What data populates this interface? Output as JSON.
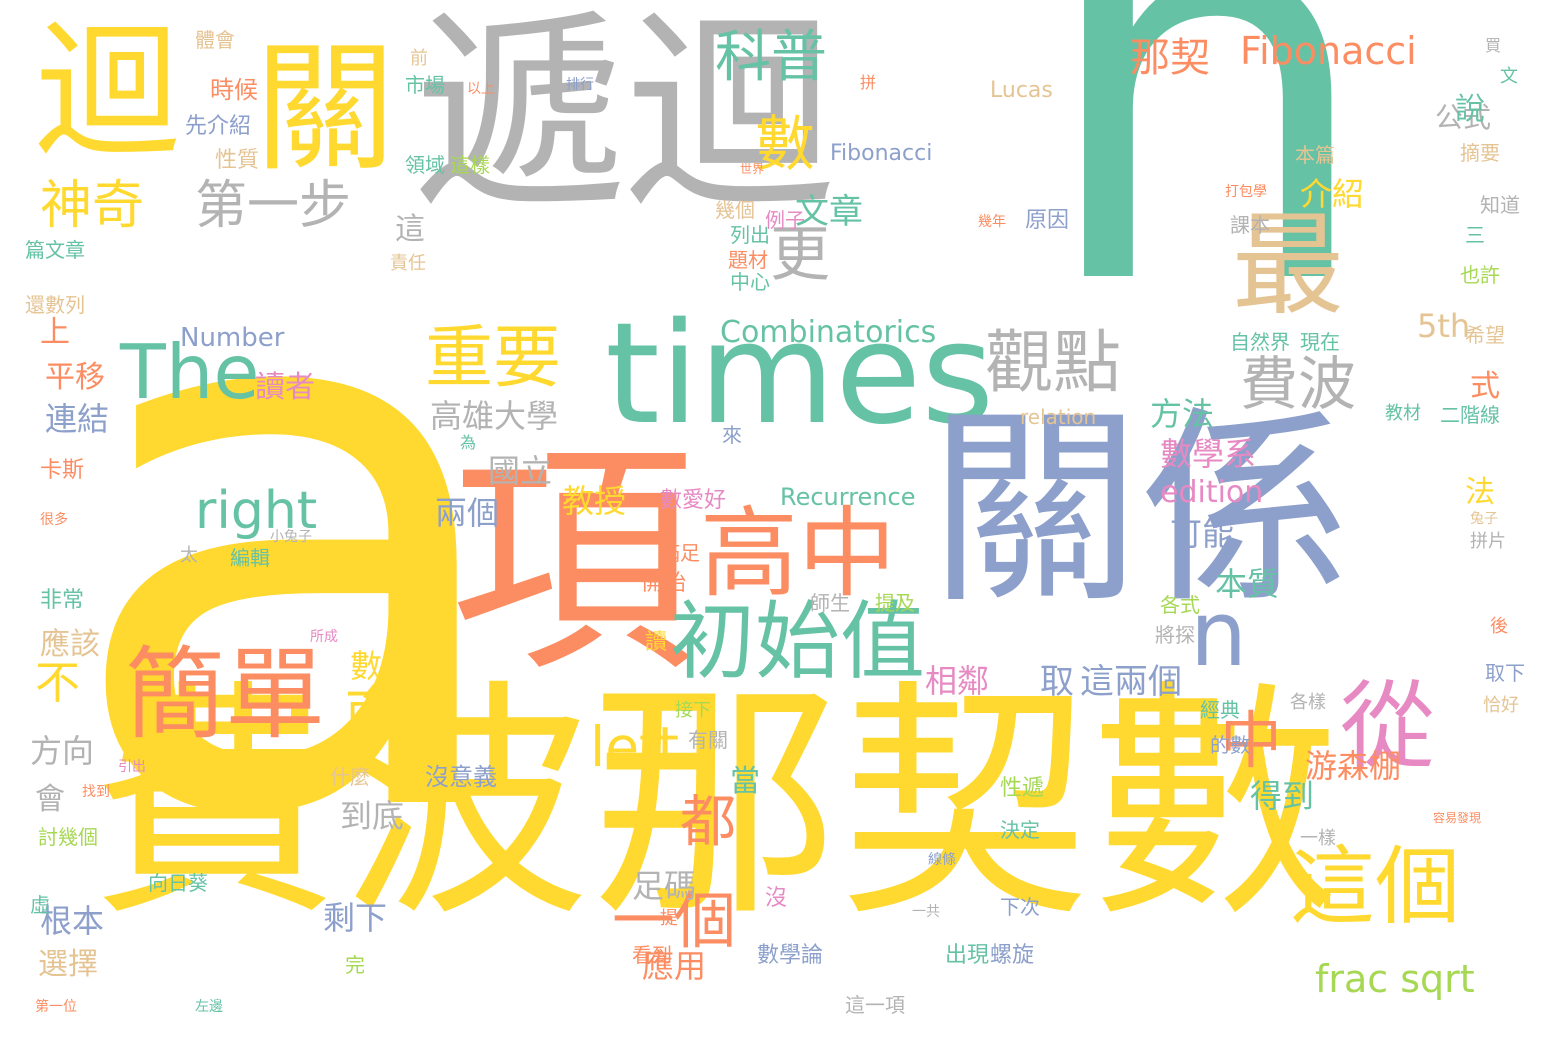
{
  "palette": {
    "yellow": "#FFD92F",
    "gray": "#B3B3B3",
    "teal": "#66C2A5",
    "orange": "#FC8D62",
    "blue": "#8DA0CB",
    "pink": "#E78AC3",
    "green": "#A6D854",
    "tan": "#E5C494"
  },
  "words": [
    {
      "text": "a",
      "color": "yellow",
      "vertical": false
    },
    {
      "text": "n",
      "color": "teal",
      "vertical": false
    },
    {
      "text": "遞迴",
      "color": "gray",
      "vertical": false
    },
    {
      "text": "費波那契數",
      "color": "yellow",
      "vertical": false
    },
    {
      "text": "times",
      "color": "teal",
      "vertical": false
    },
    {
      "text": "項",
      "color": "orange",
      "vertical": false
    },
    {
      "text": "關係",
      "color": "blue",
      "vertical": false
    },
    {
      "text": "迴",
      "color": "yellow",
      "vertical": false
    },
    {
      "text": "關",
      "color": "yellow",
      "vertical": false
    },
    {
      "text": "最",
      "color": "tan",
      "vertical": false
    },
    {
      "text": "高中",
      "color": "orange",
      "vertical": false
    },
    {
      "text": "初始值",
      "color": "teal",
      "vertical": false
    },
    {
      "text": "簡單",
      "color": "orange",
      "vertical": false
    },
    {
      "text": "從",
      "color": "pink",
      "vertical": false
    },
    {
      "text": "n",
      "color": "blue",
      "vertical": false
    },
    {
      "text": "這個",
      "color": "yellow",
      "vertical": false
    },
    {
      "text": "觀點",
      "color": "gray",
      "vertical": false
    },
    {
      "text": "重要",
      "color": "yellow",
      "vertical": false
    },
    {
      "text": "The",
      "color": "teal",
      "vertical": false
    },
    {
      "text": "費波",
      "color": "gray",
      "vertical": false
    },
    {
      "text": "神奇",
      "color": "yellow",
      "vertical": false
    },
    {
      "text": "第一步",
      "color": "gray",
      "vertical": false
    },
    {
      "text": "更",
      "color": "gray",
      "vertical": false
    },
    {
      "text": "數",
      "color": "yellow",
      "vertical": false
    },
    {
      "text": "科普",
      "color": "teal",
      "vertical": false
    },
    {
      "text": "那契",
      "color": "orange",
      "vertical": false
    },
    {
      "text": "Fibonacci",
      "color": "orange",
      "vertical": false
    },
    {
      "text": "right",
      "color": "teal",
      "vertical": false
    },
    {
      "text": "兩項",
      "color": "yellow",
      "vertical": false
    },
    {
      "text": "left",
      "color": "yellow",
      "vertical": false
    },
    {
      "text": "都",
      "color": "orange",
      "vertical": false
    },
    {
      "text": "一個",
      "color": "orange",
      "vertical": false
    },
    {
      "text": "不",
      "color": "yellow",
      "vertical": false
    },
    {
      "text": "中",
      "color": "orange",
      "vertical": false
    },
    {
      "text": "Combinatorics",
      "color": "teal",
      "vertical": false
    },
    {
      "text": "高雄大學",
      "color": "gray",
      "vertical": false
    },
    {
      "text": "frac sqrt",
      "color": "green",
      "vertical": false
    },
    {
      "text": "edition",
      "color": "pink",
      "vertical": false
    },
    {
      "text": "5th",
      "color": "tan",
      "vertical": false
    },
    {
      "text": "文章",
      "color": "teal",
      "vertical": false
    },
    {
      "text": "介紹",
      "color": "yellow",
      "vertical": false
    },
    {
      "text": "公式",
      "color": "gray",
      "vertical": false
    },
    {
      "text": "方法",
      "color": "teal",
      "vertical": false
    },
    {
      "text": "數學系",
      "color": "pink",
      "vertical": false
    },
    {
      "text": "可能",
      "color": "blue",
      "vertical": false
    },
    {
      "text": "本質",
      "color": "teal",
      "vertical": false
    },
    {
      "text": "國立",
      "color": "gray",
      "vertical": false
    },
    {
      "text": "兩個",
      "color": "blue",
      "vertical": false
    },
    {
      "text": "教授",
      "color": "yellow",
      "vertical": false
    },
    {
      "text": "游森棚",
      "color": "orange",
      "vertical": false
    },
    {
      "text": "這兩個",
      "color": "blue",
      "vertical": false
    },
    {
      "text": "取",
      "color": "blue",
      "vertical": false
    },
    {
      "text": "相鄰",
      "color": "pink",
      "vertical": false
    },
    {
      "text": "數列",
      "color": "yellow",
      "vertical": false
    },
    {
      "text": "到底",
      "color": "gray",
      "vertical": false
    },
    {
      "text": "剩下",
      "color": "blue",
      "vertical": false
    },
    {
      "text": "足碼",
      "color": "gray",
      "vertical": false
    },
    {
      "text": "應用",
      "color": "orange",
      "vertical": false
    },
    {
      "text": "得到",
      "color": "teal",
      "vertical": false
    },
    {
      "text": "平移",
      "color": "orange",
      "vertical": false
    },
    {
      "text": "連結",
      "color": "blue",
      "vertical": false
    },
    {
      "text": "讀者",
      "color": "pink",
      "vertical": false
    },
    {
      "text": "Number",
      "color": "blue",
      "vertical": false
    },
    {
      "text": "應該",
      "color": "tan",
      "vertical": false
    },
    {
      "text": "方向",
      "color": "gray",
      "vertical": false
    },
    {
      "text": "會",
      "color": "gray",
      "vertical": false
    },
    {
      "text": "根本",
      "color": "blue",
      "vertical": false
    },
    {
      "text": "選擇",
      "color": "tan",
      "vertical": false
    },
    {
      "text": "上",
      "color": "orange",
      "vertical": false
    },
    {
      "text": "這",
      "color": "gray",
      "vertical": false
    },
    {
      "text": "Recurrence",
      "color": "teal",
      "vertical": false
    },
    {
      "text": "Lucas",
      "color": "tan",
      "vertical": false
    },
    {
      "text": "Fibonacci",
      "color": "blue",
      "vertical": false
    },
    {
      "text": "relation",
      "color": "tan",
      "vertical": false
    },
    {
      "text": "當",
      "color": "teal",
      "vertical": false
    },
    {
      "text": "法",
      "color": "yellow",
      "vertical": false
    },
    {
      "text": "式",
      "color": "orange",
      "vertical": false
    },
    {
      "text": "說",
      "color": "teal",
      "vertical": false
    },
    {
      "text": "體會",
      "color": "tan",
      "vertical": false
    },
    {
      "text": "時候",
      "color": "orange",
      "vertical": false
    },
    {
      "text": "先介紹",
      "color": "blue",
      "vertical": false
    },
    {
      "text": "性質",
      "color": "tan",
      "vertical": false
    },
    {
      "text": "篇文章",
      "color": "teal",
      "vertical": false
    },
    {
      "text": "還數列",
      "color": "tan",
      "vertical": false
    },
    {
      "text": "卡斯",
      "color": "orange",
      "vertical": false
    },
    {
      "text": "非常",
      "color": "teal",
      "vertical": false
    },
    {
      "text": "虛",
      "color": "teal",
      "vertical": false
    },
    {
      "text": "前",
      "color": "tan",
      "vertical": false
    },
    {
      "text": "市場",
      "color": "teal",
      "vertical": false
    },
    {
      "text": "領域",
      "color": "teal",
      "vertical": false
    },
    {
      "text": "這樣",
      "color": "green",
      "vertical": false
    },
    {
      "text": "責任",
      "color": "tan",
      "vertical": false
    },
    {
      "text": "幾個",
      "color": "tan",
      "vertical": false
    },
    {
      "text": "例子",
      "color": "pink",
      "vertical": false
    },
    {
      "text": "列出",
      "color": "teal",
      "vertical": false
    },
    {
      "text": "題材",
      "color": "orange",
      "vertical": false
    },
    {
      "text": "中心",
      "color": "teal",
      "vertical": false
    },
    {
      "text": "原因",
      "color": "blue",
      "vertical": false
    },
    {
      "text": "本篇",
      "color": "tan",
      "vertical": false
    },
    {
      "text": "課本",
      "color": "gray",
      "vertical": false
    },
    {
      "text": "摘要",
      "color": "tan",
      "vertical": false
    },
    {
      "text": "知道",
      "color": "gray",
      "vertical": false
    },
    {
      "text": "三",
      "color": "teal",
      "vertical": false
    },
    {
      "text": "也許",
      "color": "green",
      "vertical": false
    },
    {
      "text": "希望",
      "color": "tan",
      "vertical": false
    },
    {
      "text": "自然界",
      "color": "teal",
      "vertical": false
    },
    {
      "text": "現在",
      "color": "teal",
      "vertical": false
    },
    {
      "text": "教材",
      "color": "teal",
      "vertical": false
    },
    {
      "text": "二階線",
      "color": "teal",
      "vertical": false
    },
    {
      "text": "滿足",
      "color": "orange",
      "vertical": false
    },
    {
      "text": "開始",
      "color": "orange",
      "vertical": false
    },
    {
      "text": "數愛好",
      "color": "pink",
      "vertical": false
    },
    {
      "text": "提及",
      "color": "green",
      "vertical": false
    },
    {
      "text": "將探",
      "color": "gray",
      "vertical": false
    },
    {
      "text": "各式",
      "color": "green",
      "vertical": false
    },
    {
      "text": "經典",
      "color": "teal",
      "vertical": false
    },
    {
      "text": "的數",
      "color": "blue",
      "vertical": false
    },
    {
      "text": "一樣",
      "color": "gray",
      "vertical": false
    },
    {
      "text": "什麼",
      "color": "tan",
      "vertical": false
    },
    {
      "text": "沒意義",
      "color": "blue",
      "vertical": false
    },
    {
      "text": "性遞",
      "color": "green",
      "vertical": false
    },
    {
      "text": "決定",
      "color": "teal",
      "vertical": false
    },
    {
      "text": "下次",
      "color": "blue",
      "vertical": false
    },
    {
      "text": "出現",
      "color": "teal",
      "vertical": false
    },
    {
      "text": "螺旋",
      "color": "blue",
      "vertical": false
    },
    {
      "text": "這一項",
      "color": "gray",
      "vertical": false
    },
    {
      "text": "數學論",
      "color": "blue",
      "vertical": false
    },
    {
      "text": "看到",
      "color": "orange",
      "vertical": false
    },
    {
      "text": "完",
      "color": "green",
      "vertical": false
    },
    {
      "text": "向日葵",
      "color": "teal",
      "vertical": false
    },
    {
      "text": "討幾個",
      "color": "green",
      "vertical": false
    },
    {
      "text": "太",
      "color": "gray",
      "vertical": false
    },
    {
      "text": "編輯",
      "color": "teal",
      "vertical": false
    },
    {
      "text": "師生",
      "color": "gray",
      "vertical": false
    },
    {
      "text": "讀",
      "color": "yellow",
      "vertical": false
    },
    {
      "text": "接下",
      "color": "green",
      "vertical": false
    },
    {
      "text": "有關",
      "color": "gray",
      "vertical": false
    },
    {
      "text": "取下",
      "color": "blue",
      "vertical": false
    },
    {
      "text": "恰好",
      "color": "tan",
      "vertical": false
    },
    {
      "text": "後",
      "color": "orange",
      "vertical": false
    },
    {
      "text": "各樣",
      "color": "gray",
      "vertical": false
    },
    {
      "text": "提",
      "color": "orange",
      "vertical": false
    },
    {
      "text": "沒",
      "color": "pink",
      "vertical": false
    },
    {
      "text": "一共",
      "color": "gray",
      "vertical": false
    },
    {
      "text": "文",
      "color": "teal",
      "vertical": false
    },
    {
      "text": "買",
      "color": "gray",
      "vertical": false
    },
    {
      "text": "拼",
      "color": "orange",
      "vertical": false
    },
    {
      "text": "以上",
      "color": "orange",
      "vertical": false
    },
    {
      "text": "排行",
      "color": "blue",
      "vertical": false
    },
    {
      "text": "世界",
      "color": "orange",
      "vertical": false
    },
    {
      "text": "打包學",
      "color": "orange",
      "vertical": false
    },
    {
      "text": "幾年",
      "color": "orange",
      "vertical": false
    },
    {
      "text": "很多",
      "color": "orange",
      "vertical": false
    },
    {
      "text": "小兔子",
      "color": "gray",
      "vertical": false
    },
    {
      "text": "兔子",
      "color": "tan",
      "vertical": false
    },
    {
      "text": "拼片",
      "color": "gray",
      "vertical": false
    },
    {
      "text": "為",
      "color": "teal",
      "vertical": false
    },
    {
      "text": "來",
      "color": "blue",
      "vertical": false
    },
    {
      "text": "引出",
      "color": "pink",
      "vertical": false
    },
    {
      "text": "找到",
      "color": "orange",
      "vertical": false
    },
    {
      "text": "第一位",
      "color": "orange",
      "vertical": false
    },
    {
      "text": "左邊",
      "color": "teal",
      "vertical": false
    },
    {
      "text": "所成",
      "color": "pink",
      "vertical": false
    },
    {
      "text": "線條",
      "color": "blue",
      "vertical": false
    },
    {
      "text": "容易發現",
      "color": "orange",
      "vertical": false
    }
  ]
}
